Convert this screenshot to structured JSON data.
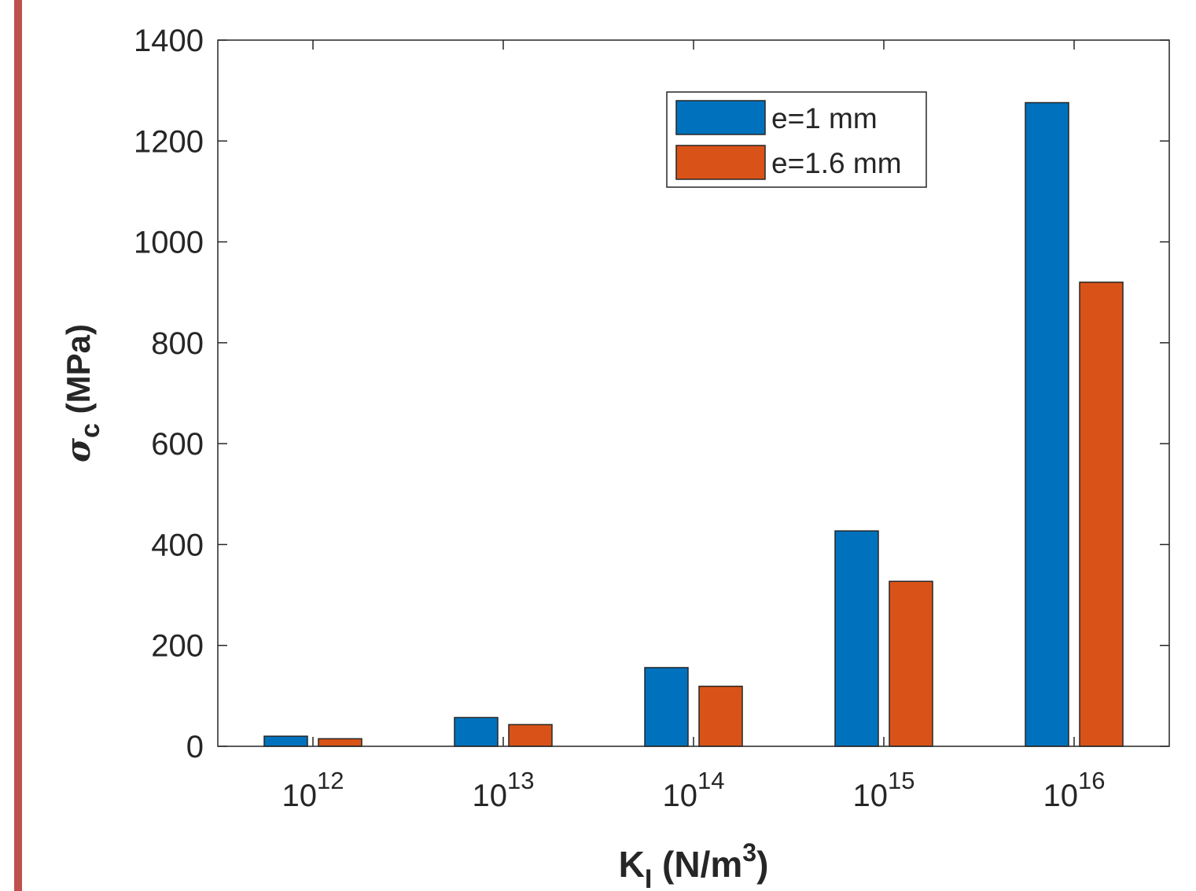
{
  "colors": {
    "series1": "#0072BD",
    "series2": "#D95319",
    "axis": "#262626",
    "page_rule": "#C0504D"
  },
  "chart_data": {
    "type": "bar",
    "categories": [
      "10^12",
      "10^13",
      "10^14",
      "10^15",
      "10^16"
    ],
    "category_labels": [
      {
        "base": "10",
        "exp": "12"
      },
      {
        "base": "10",
        "exp": "13"
      },
      {
        "base": "10",
        "exp": "14"
      },
      {
        "base": "10",
        "exp": "15"
      },
      {
        "base": "10",
        "exp": "16"
      }
    ],
    "series": [
      {
        "name": "e=1 mm",
        "values": [
          20,
          57,
          156,
          427,
          1276
        ]
      },
      {
        "name": "e=1.6 mm",
        "values": [
          15,
          43,
          119,
          327,
          920
        ]
      }
    ],
    "ylim": [
      0,
      1400
    ],
    "yticks": [
      0,
      200,
      400,
      600,
      800,
      1000,
      1200,
      1400
    ],
    "ylabel": {
      "symbol": "σ",
      "subscript": "c",
      "unit": " (MPa)"
    },
    "xlabel": {
      "symbol": "K",
      "subscript": "I",
      "unit_pre": " (N/m",
      "sup": "3",
      "unit_post": ")"
    },
    "legend_position": "top-right",
    "grid": false
  }
}
